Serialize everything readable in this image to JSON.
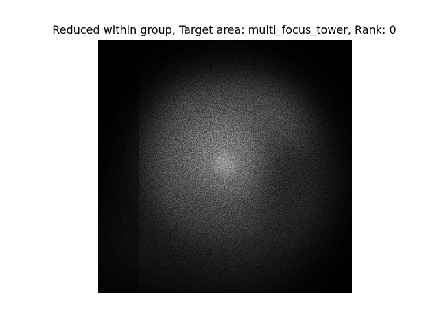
{
  "figure": {
    "title": "Reduced within group, Target area: multi_focus_tower, Rank: 0"
  },
  "image": {
    "colormap": "gray",
    "background": "#000000",
    "depiction": "diffuse grainy bright blob on dark field"
  }
}
